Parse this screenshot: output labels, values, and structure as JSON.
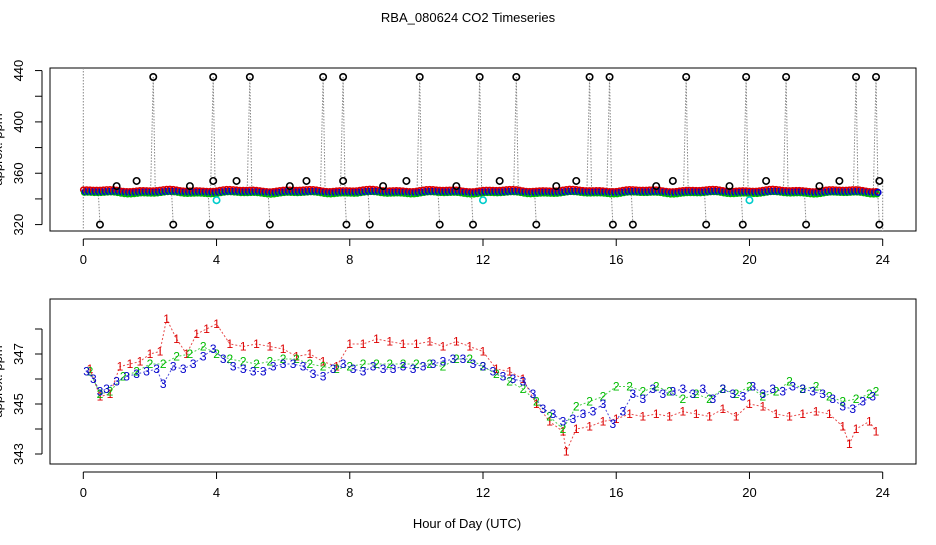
{
  "chart_data": [
    {
      "type": "scatter",
      "title": "RBA_080624  CO2 Timeseries",
      "xlabel": "",
      "ylabel": "approx. ppm",
      "xlim": [
        -1,
        25
      ],
      "ylim": [
        315,
        442
      ],
      "xticks": [
        0,
        4,
        8,
        12,
        16,
        20,
        24
      ],
      "yticks": [
        320,
        360,
        400,
        440
      ],
      "yminor": [
        340,
        380,
        420
      ],
      "baseline": 345.5,
      "spikes_high": [
        2.1,
        3.9,
        5.0,
        7.2,
        7.8,
        10.1,
        11.9,
        13.0,
        15.2,
        15.8,
        18.1,
        19.9,
        21.1,
        23.2,
        23.8
      ],
      "spikes_low": [
        0.5,
        2.7,
        3.8,
        5.6,
        7.9,
        8.6,
        10.7,
        11.7,
        13.6,
        15.9,
        16.5,
        18.7,
        19.8,
        21.7,
        23.9
      ],
      "outliers_mid": [
        {
          "x": 1.6,
          "y": 354
        },
        {
          "x": 4.6,
          "y": 354
        },
        {
          "x": 6.7,
          "y": 354
        },
        {
          "x": 7.8,
          "y": 354
        },
        {
          "x": 9.7,
          "y": 354
        },
        {
          "x": 12.5,
          "y": 354
        },
        {
          "x": 14.8,
          "y": 354
        },
        {
          "x": 17.7,
          "y": 354
        },
        {
          "x": 20.5,
          "y": 354
        },
        {
          "x": 22.7,
          "y": 354
        },
        {
          "x": 23.9,
          "y": 354
        },
        {
          "x": 3.9,
          "y": 354
        },
        {
          "x": 1.0,
          "y": 350
        },
        {
          "x": 3.2,
          "y": 350
        },
        {
          "x": 6.2,
          "y": 350
        },
        {
          "x": 9.0,
          "y": 350
        },
        {
          "x": 11.2,
          "y": 350
        },
        {
          "x": 14.2,
          "y": 350
        },
        {
          "x": 17.2,
          "y": 350
        },
        {
          "x": 19.4,
          "y": 350
        },
        {
          "x": 22.1,
          "y": 350
        }
      ],
      "cyan_points": [
        {
          "x": 4.0,
          "y": 339
        },
        {
          "x": 12.0,
          "y": 339
        },
        {
          "x": 20.0,
          "y": 339
        }
      ],
      "series_colors": {
        "spikes": "#000000",
        "high": "#0000cc",
        "mid": "#00bb00",
        "low": "#dd0000",
        "cyan": "#00cccc",
        "trace": "#888888"
      }
    },
    {
      "type": "scatter",
      "title": "",
      "xlabel": "Hour of Day (UTC)",
      "ylabel": "approx. ppm",
      "xlim": [
        -1,
        25
      ],
      "ylim": [
        342.6,
        349.2
      ],
      "xticks": [
        0,
        4,
        8,
        12,
        16,
        20,
        24
      ],
      "yticks": [
        343,
        345,
        347
      ],
      "yminor": [
        344,
        346,
        348
      ],
      "series": [
        {
          "name": "1",
          "color": "#dd0000",
          "x": [
            0.2,
            0.5,
            0.8,
            1.1,
            1.4,
            1.7,
            2.0,
            2.3,
            2.5,
            2.8,
            3.1,
            3.4,
            3.7,
            4.0,
            4.4,
            4.8,
            5.2,
            5.6,
            6.0,
            6.4,
            6.8,
            7.2,
            7.6,
            8.0,
            8.4,
            8.8,
            9.2,
            9.6,
            10.0,
            10.4,
            10.8,
            11.2,
            11.6,
            12.0,
            12.4,
            12.8,
            13.2,
            13.6,
            14.0,
            14.4,
            14.5,
            14.8,
            15.2,
            15.6,
            16.0,
            16.4,
            16.8,
            17.2,
            17.6,
            18.0,
            18.4,
            18.8,
            19.2,
            19.6,
            20.0,
            20.4,
            20.8,
            21.2,
            21.6,
            22.0,
            22.4,
            22.8,
            23.0,
            23.2,
            23.6,
            23.8
          ],
          "values": [
            346.4,
            345.3,
            345.4,
            346.5,
            346.6,
            346.7,
            347.0,
            347.1,
            348.4,
            347.6,
            347.0,
            347.8,
            348.0,
            348.2,
            347.4,
            347.3,
            347.4,
            347.3,
            347.2,
            346.9,
            347.0,
            346.7,
            346.5,
            347.4,
            347.4,
            347.6,
            347.5,
            347.4,
            347.4,
            347.5,
            347.3,
            347.5,
            347.3,
            347.1,
            346.4,
            346.3,
            346.0,
            345.0,
            344.3,
            343.9,
            343.1,
            344.0,
            344.1,
            344.3,
            344.4,
            344.6,
            344.5,
            344.6,
            344.5,
            344.7,
            344.6,
            344.5,
            344.8,
            344.5,
            345.0,
            344.9,
            344.6,
            344.5,
            344.6,
            344.7,
            344.6,
            344.1,
            343.4,
            344.0,
            344.3,
            343.9
          ]
        },
        {
          "name": "2",
          "color": "#00bb00",
          "x": [
            0.2,
            0.5,
            0.8,
            1.2,
            1.6,
            2.0,
            2.4,
            2.8,
            3.2,
            3.6,
            4.0,
            4.4,
            4.8,
            5.2,
            5.6,
            6.0,
            6.4,
            6.8,
            7.2,
            7.6,
            8.0,
            8.4,
            8.8,
            9.2,
            9.6,
            10.0,
            10.4,
            10.8,
            11.2,
            11.6,
            12.0,
            12.4,
            12.8,
            13.2,
            13.6,
            14.0,
            14.4,
            14.8,
            15.2,
            15.6,
            16.0,
            16.4,
            16.8,
            17.2,
            17.6,
            18.0,
            18.4,
            18.8,
            19.2,
            19.6,
            20.0,
            20.4,
            20.8,
            21.2,
            21.6,
            22.0,
            22.4,
            22.8,
            23.2,
            23.6,
            23.8
          ],
          "values": [
            346.3,
            345.4,
            345.5,
            346.1,
            346.3,
            346.6,
            346.6,
            346.9,
            347.0,
            347.3,
            347.0,
            346.8,
            346.7,
            346.6,
            346.7,
            346.8,
            346.8,
            346.6,
            346.5,
            346.4,
            346.5,
            346.6,
            346.6,
            346.6,
            346.6,
            346.6,
            346.6,
            346.5,
            346.8,
            346.8,
            346.5,
            346.2,
            345.9,
            345.6,
            345.1,
            344.5,
            344.0,
            344.9,
            345.1,
            345.3,
            345.7,
            345.7,
            345.5,
            345.7,
            345.5,
            345.2,
            345.4,
            345.2,
            345.6,
            345.4,
            345.7,
            345.3,
            345.5,
            345.9,
            345.6,
            345.7,
            345.3,
            345.1,
            345.2,
            345.4,
            345.5
          ]
        },
        {
          "name": "3",
          "color": "#0000cc",
          "x": [
            0.1,
            0.3,
            0.5,
            0.7,
            1.0,
            1.3,
            1.6,
            1.9,
            2.2,
            2.4,
            2.7,
            3.0,
            3.3,
            3.6,
            3.9,
            4.2,
            4.5,
            4.8,
            5.1,
            5.4,
            5.7,
            6.0,
            6.3,
            6.6,
            6.9,
            7.2,
            7.5,
            7.8,
            8.1,
            8.4,
            8.7,
            9.0,
            9.3,
            9.6,
            9.9,
            10.2,
            10.5,
            10.8,
            11.1,
            11.4,
            11.7,
            12.0,
            12.3,
            12.6,
            12.9,
            13.2,
            13.5,
            13.8,
            14.1,
            14.4,
            14.7,
            15.0,
            15.3,
            15.6,
            15.9,
            16.2,
            16.5,
            16.8,
            17.1,
            17.4,
            17.7,
            18.0,
            18.3,
            18.6,
            18.9,
            19.2,
            19.5,
            19.8,
            20.1,
            20.4,
            20.7,
            21.0,
            21.3,
            21.6,
            21.9,
            22.2,
            22.5,
            22.8,
            23.1,
            23.4,
            23.7
          ],
          "values": [
            346.3,
            346.0,
            345.5,
            345.6,
            345.9,
            346.1,
            346.2,
            346.3,
            346.4,
            345.8,
            346.5,
            346.4,
            346.6,
            346.9,
            347.2,
            346.8,
            346.5,
            346.4,
            346.3,
            346.3,
            346.5,
            346.6,
            346.6,
            346.5,
            346.2,
            346.1,
            346.4,
            346.6,
            346.4,
            346.3,
            346.5,
            346.4,
            346.4,
            346.5,
            346.4,
            346.5,
            346.6,
            346.7,
            346.8,
            346.8,
            346.6,
            346.5,
            346.3,
            346.1,
            346.0,
            345.9,
            345.4,
            344.8,
            344.6,
            344.3,
            344.4,
            344.6,
            344.7,
            345.0,
            344.2,
            344.7,
            345.4,
            345.2,
            345.6,
            345.4,
            345.5,
            345.6,
            345.4,
            345.6,
            345.2,
            345.6,
            345.4,
            345.3,
            345.7,
            345.4,
            345.6,
            345.5,
            345.7,
            345.6,
            345.5,
            345.4,
            345.2,
            344.9,
            344.8,
            345.1,
            345.3
          ]
        }
      ]
    }
  ]
}
